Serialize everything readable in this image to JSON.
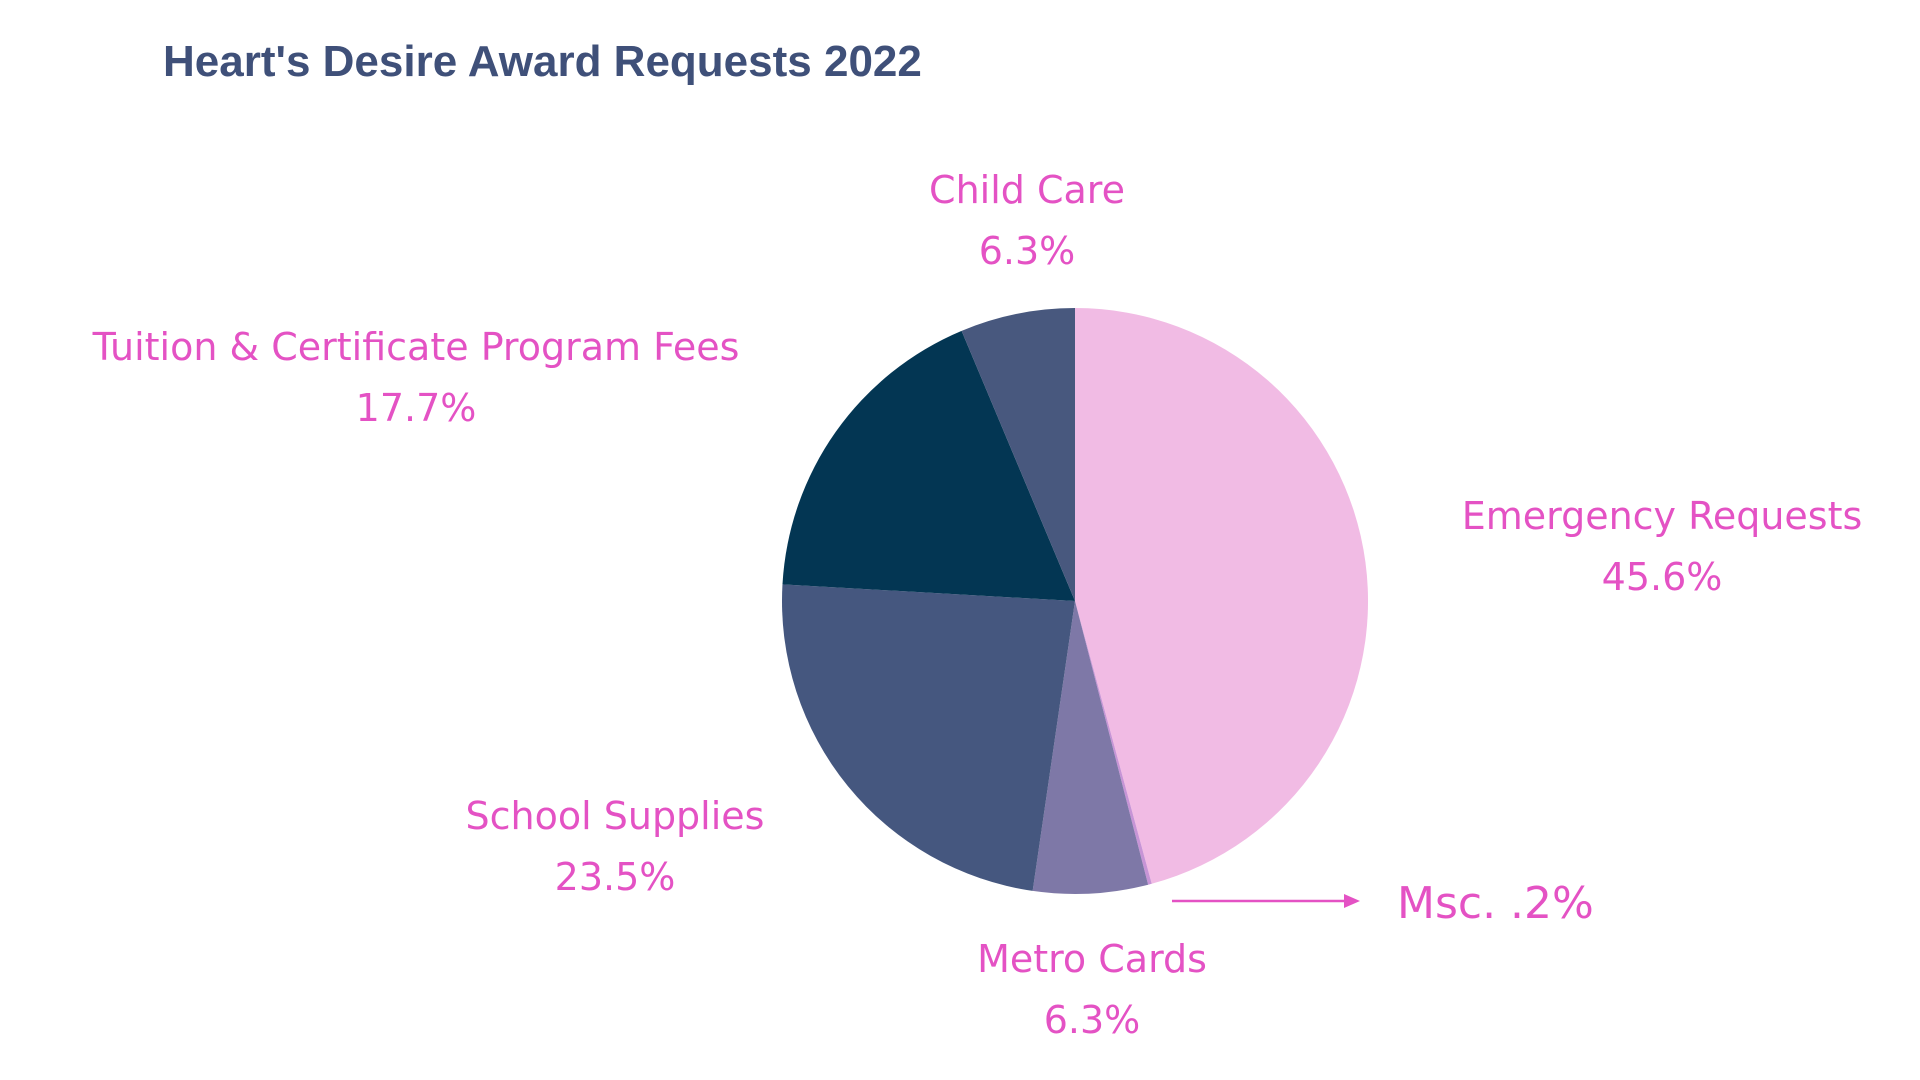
{
  "chart_data": {
    "type": "pie",
    "title": "Heart's Desire Award Requests 2022",
    "start_angle_deg": 0,
    "direction": "clockwise",
    "legend": "none",
    "slices": [
      {
        "name": "Emergency Requests",
        "value": 45.6,
        "label": "45.6%",
        "color": "#f1bbe4"
      },
      {
        "name": "Msc.",
        "value": 0.2,
        "label": ".2%",
        "color": "#c794d6"
      },
      {
        "name": "Metro Cards",
        "value": 6.3,
        "label": "6.3%",
        "color": "#7e78a7"
      },
      {
        "name": "School Supplies",
        "value": 23.5,
        "label": "23.5%",
        "color": "#45577f"
      },
      {
        "name": "Tuition & Certificate Program Fees",
        "value": 17.7,
        "label": "17.7%",
        "color": "#033653"
      },
      {
        "name": "Child Care",
        "value": 6.3,
        "label": "6.3%",
        "color": "#48587e"
      }
    ],
    "annotations": {
      "misc_label": "Msc. .2%"
    }
  }
}
